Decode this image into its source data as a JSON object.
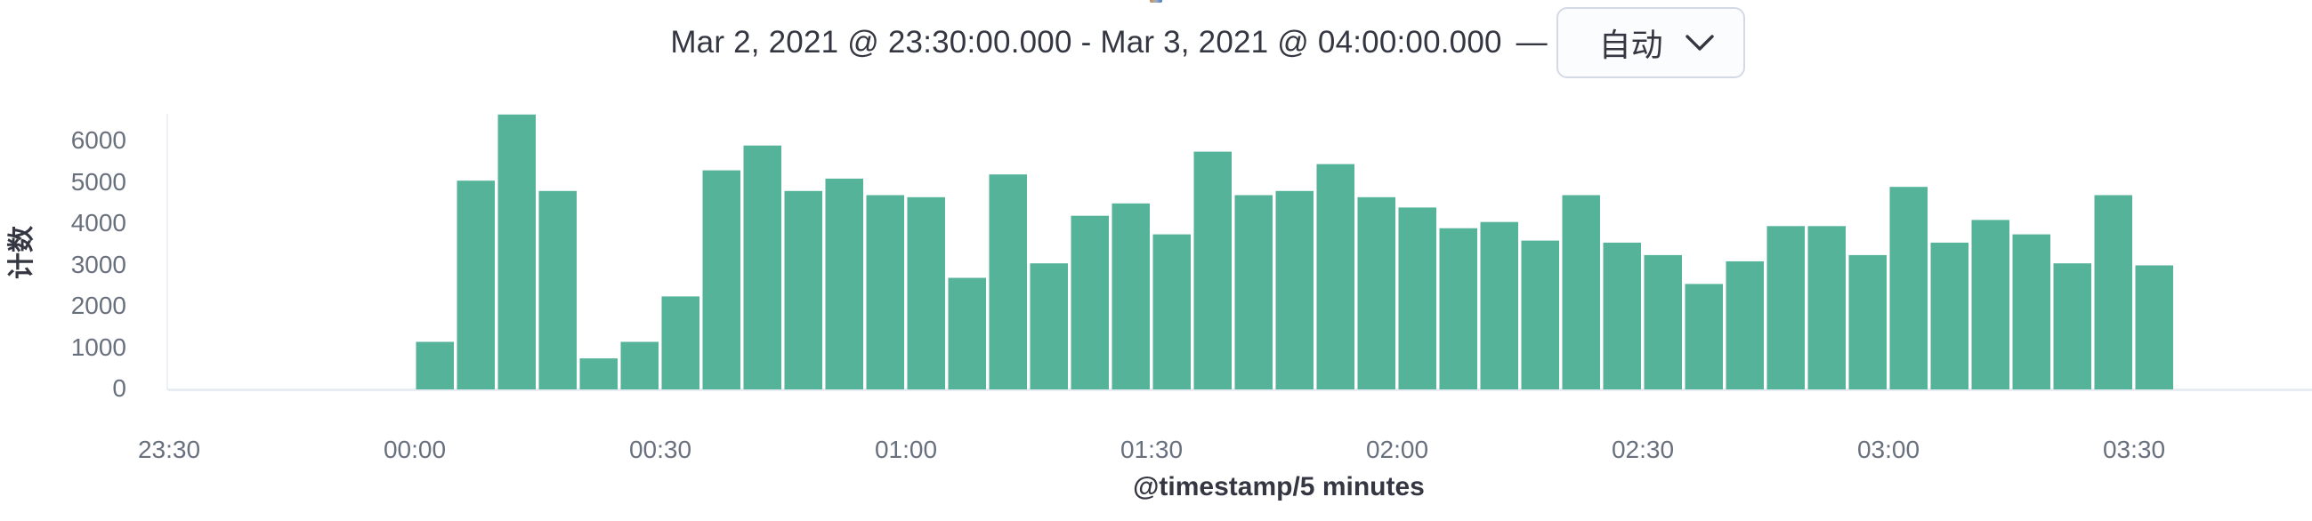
{
  "header": {
    "time_range": "Mar 2, 2021 @ 23:30:00.000 - Mar 3, 2021 @ 04:00:00.000",
    "separator": "—",
    "interval": {
      "selected": "自动"
    }
  },
  "chart_data": {
    "type": "bar",
    "title": "Mar 2, 2021 @ 23:30:00.000 - Mar 3, 2021 @ 04:00:00.000",
    "xlabel": "@timestamp/5 minutes",
    "ylabel": "计数",
    "bin_minutes": 5,
    "grid": false,
    "legend": false,
    "ylim": [
      0,
      6650
    ],
    "y_tick_labels": [
      "0",
      "1000",
      "2000",
      "3000",
      "4000",
      "5000",
      "6000"
    ],
    "y_tick_values": [
      0,
      1000,
      2000,
      3000,
      4000,
      5000,
      6000
    ],
    "x_tick_labels": [
      "23:30",
      "00:00",
      "00:30",
      "01:00",
      "01:30",
      "02:00",
      "02:30",
      "03:00",
      "03:30"
    ],
    "x": [
      "00:00",
      "00:05",
      "00:10",
      "00:15",
      "00:20",
      "00:25",
      "00:30",
      "00:35",
      "00:40",
      "00:45",
      "00:50",
      "00:55",
      "01:00",
      "01:05",
      "01:10",
      "01:15",
      "01:20",
      "01:25",
      "01:30",
      "01:35",
      "01:40",
      "01:45",
      "01:50",
      "01:55",
      "02:00",
      "02:05",
      "02:10",
      "02:15",
      "02:20",
      "02:25",
      "02:30",
      "02:35",
      "02:40",
      "02:45",
      "02:50",
      "02:55",
      "03:00",
      "03:05",
      "03:10",
      "03:15",
      "03:20",
      "03:25",
      "03:30"
    ],
    "values": [
      1150,
      5050,
      6650,
      4800,
      750,
      1150,
      2250,
      5300,
      5900,
      4800,
      5100,
      4700,
      4650,
      2700,
      5200,
      3050,
      4200,
      4500,
      3750,
      5750,
      4700,
      4800,
      5450,
      4650,
      4400,
      3900,
      4050,
      3600,
      4700,
      3550,
      3250,
      2550,
      3100,
      3950,
      3950,
      3250,
      4900,
      3550,
      4100,
      3750,
      3050,
      4700,
      3000
    ]
  },
  "colors": {
    "bar": "#54b399",
    "axis_tick_text": "#69707d",
    "dark_text": "#343741",
    "dropdown_border": "#d3dae6",
    "dropdown_bg": "#fbfcfd",
    "axis_line": "#e7edf3"
  }
}
